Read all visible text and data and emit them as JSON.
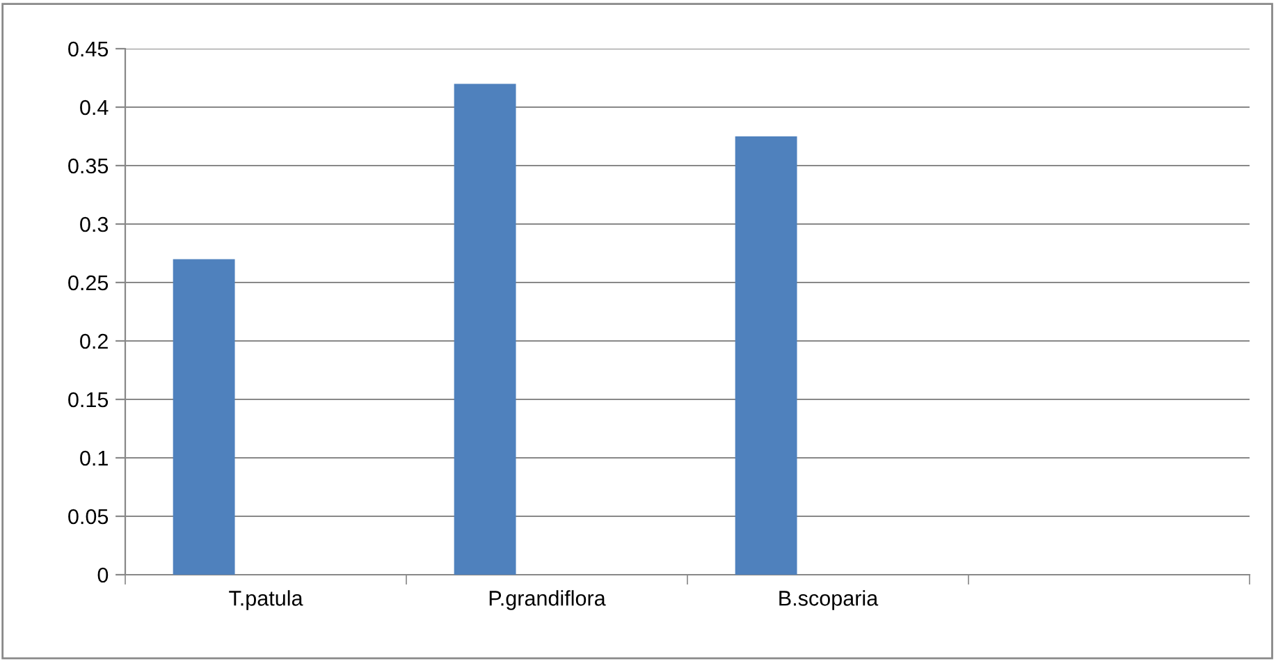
{
  "chart_data": {
    "type": "bar",
    "categories": [
      "T.patula",
      "P.grandiflora",
      "B.scoparia",
      null
    ],
    "values": [
      0.27,
      0.42,
      0.375,
      null
    ],
    "color": "#4f81bd",
    "ylim": [
      0,
      0.45
    ],
    "yticks": [
      0,
      0.05,
      0.1,
      0.15,
      0.2,
      0.25,
      0.3,
      0.35,
      0.4,
      0.45
    ],
    "grid": "y"
  }
}
